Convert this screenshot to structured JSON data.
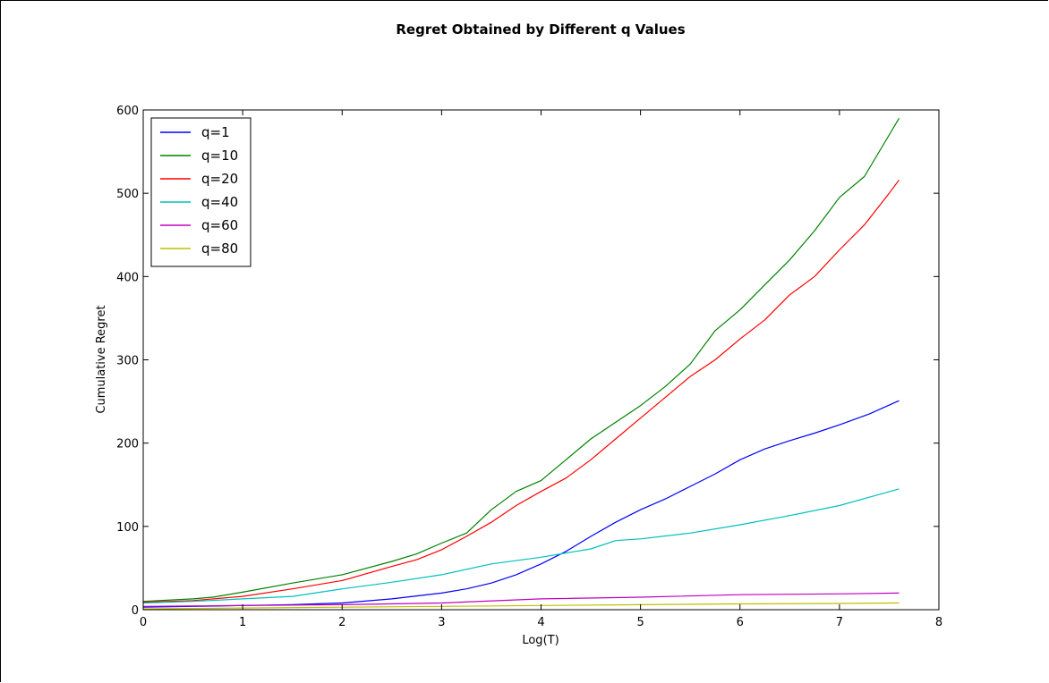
{
  "chart_data": {
    "type": "line",
    "title": "Regret Obtained by Different q Values",
    "xlabel": "Log(T)",
    "ylabel": "Cumulative Regret",
    "xlim": [
      0,
      8
    ],
    "ylim": [
      0,
      600
    ],
    "xticks": [
      "0",
      "1",
      "2",
      "3",
      "4",
      "5",
      "6",
      "7",
      "8"
    ],
    "yticks": [
      "0",
      "100",
      "200",
      "300",
      "400",
      "500",
      "600"
    ],
    "grid": false,
    "legend_position": "top-left",
    "series": [
      {
        "name": "q=1",
        "color": "#0000ff",
        "x": [
          0,
          0.5,
          1,
          1.5,
          2,
          2.5,
          3,
          3.25,
          3.5,
          3.75,
          4,
          4.25,
          4.5,
          4.75,
          5,
          5.25,
          5.5,
          5.75,
          6,
          6.25,
          6.5,
          6.75,
          7,
          7.3,
          7.6
        ],
        "y": [
          3,
          4,
          5,
          6,
          8,
          13,
          20,
          25,
          32,
          42,
          55,
          70,
          88,
          105,
          120,
          133,
          148,
          163,
          180,
          193,
          203,
          212,
          222,
          235,
          251
        ]
      },
      {
        "name": "q=10",
        "color": "#008000",
        "x": [
          0,
          0.5,
          0.7,
          1,
          1.5,
          2,
          2.5,
          2.75,
          3,
          3.25,
          3.5,
          3.75,
          4,
          4.25,
          4.5,
          4.75,
          5,
          5.25,
          5.5,
          5.75,
          6,
          6.25,
          6.5,
          6.75,
          7,
          7.25,
          7.5,
          7.6
        ],
        "y": [
          10,
          13,
          15,
          21,
          32,
          42,
          58,
          67,
          80,
          92,
          120,
          142,
          155,
          180,
          205,
          225,
          245,
          268,
          295,
          335,
          360,
          390,
          420,
          455,
          495,
          520,
          570,
          590
        ]
      },
      {
        "name": "q=20",
        "color": "#ff0000",
        "x": [
          0,
          0.5,
          1,
          1.5,
          2,
          2.5,
          2.75,
          3,
          3.25,
          3.5,
          3.75,
          4,
          4.25,
          4.5,
          4.75,
          5,
          5.25,
          5.5,
          5.75,
          6,
          6.25,
          6.5,
          6.75,
          7,
          7.25,
          7.5,
          7.6
        ],
        "y": [
          9,
          11,
          16,
          25,
          35,
          52,
          60,
          72,
          88,
          105,
          125,
          142,
          158,
          180,
          205,
          230,
          255,
          280,
          300,
          325,
          348,
          378,
          400,
          432,
          462,
          500,
          516
        ]
      },
      {
        "name": "q=40",
        "color": "#00bfbf",
        "x": [
          0,
          0.5,
          1,
          1.5,
          2,
          2.5,
          3,
          3.5,
          4,
          4.5,
          4.75,
          5,
          5.5,
          6,
          6.5,
          7,
          7.3,
          7.6
        ],
        "y": [
          8,
          10,
          13,
          16,
          25,
          33,
          42,
          55,
          63,
          73,
          83,
          85,
          92,
          102,
          113,
          125,
          135,
          145
        ]
      },
      {
        "name": "q=60",
        "color": "#bf00bf",
        "x": [
          0,
          1,
          2,
          3,
          4,
          5,
          6,
          7,
          7.6
        ],
        "y": [
          4,
          5,
          6,
          8,
          13,
          15,
          18,
          19,
          20
        ]
      },
      {
        "name": "q=80",
        "color": "#bfbf00",
        "x": [
          0,
          1,
          2,
          3,
          4,
          5,
          6,
          7,
          7.6
        ],
        "y": [
          1,
          2,
          3,
          4,
          5,
          6,
          7,
          7.5,
          8
        ]
      }
    ]
  }
}
